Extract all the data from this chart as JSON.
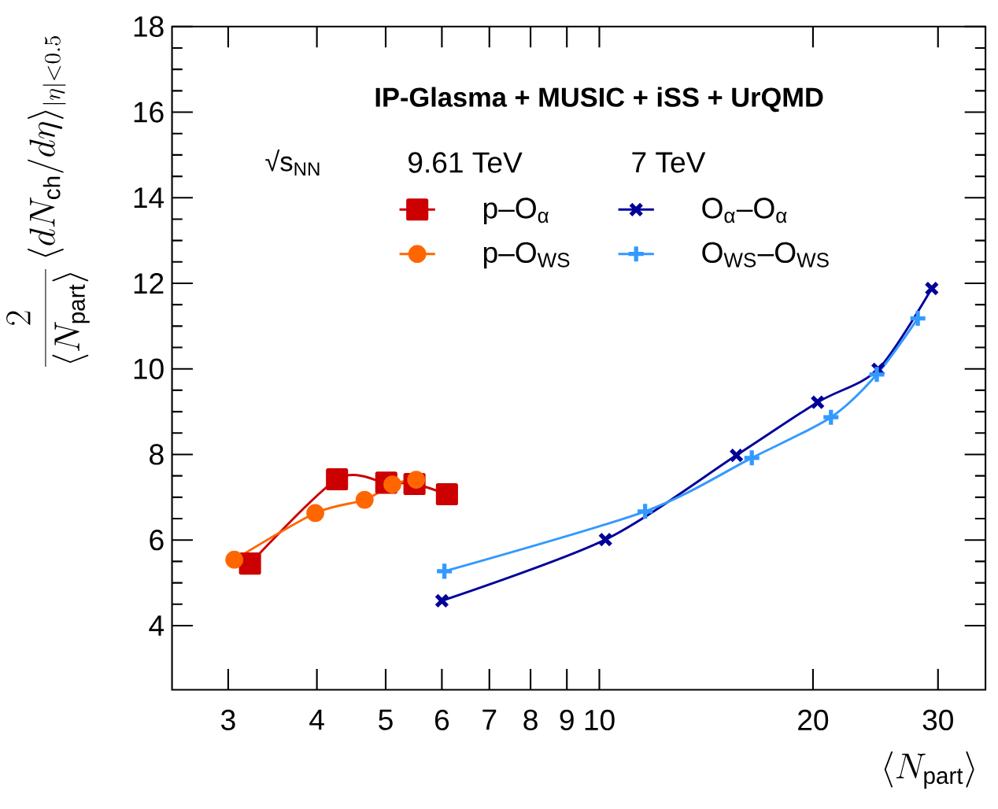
{
  "chart_data": {
    "type": "line",
    "title": "IP-Glasma + MUSIC + iSS + UrQMD",
    "xlabel": "\\langle N_{\\mathrm{part}}\\rangle",
    "ylabel": "\\frac{2}{\\langle N_{\\mathrm{part}}\\rangle}\\,\\langle dN_{\\mathrm{ch}}/d\\eta\\rangle_{|\\eta|<0.5}",
    "legend_title": "√s$_{NN}$",
    "annotations": [
      "9.61 TeV",
      "7 TeV"
    ],
    "log": "x",
    "xlim": [
      2.5,
      35
    ],
    "ylim": [
      2.5,
      18
    ],
    "xticks": [
      3,
      4,
      5,
      6,
      7,
      8,
      9,
      10,
      20,
      30
    ],
    "yticks": [
      4,
      6,
      8,
      10,
      12,
      14,
      16,
      18
    ],
    "grid": false,
    "legend": "top left",
    "line_style": "solid",
    "series": [
      {
        "name": "p–O$_{α}$",
        "color": "#cc0000",
        "marker": "square",
        "x": [
          3.22,
          4.27,
          5.01,
          5.49,
          6.1
        ],
        "values": [
          5.45,
          7.42,
          7.34,
          7.31,
          7.07
        ]
      },
      {
        "name": "p–O$_{WS}$",
        "color": "#ff6600",
        "marker": "circle",
        "x": [
          3.06,
          3.98,
          4.67,
          5.11,
          5.52
        ],
        "values": [
          5.54,
          6.63,
          6.94,
          7.3,
          7.41
        ]
      },
      {
        "name": "O$_{α}$–O$_{α}$",
        "color": "#000099",
        "marker": "cross",
        "x": [
          6.0,
          10.2,
          15.6,
          20.3,
          24.7,
          29.4
        ],
        "values": [
          4.58,
          6.01,
          7.98,
          9.22,
          9.99,
          11.88
        ]
      },
      {
        "name": "O$_{WS}$–O$_{WS}$",
        "color": "#3399ff",
        "marker": "plus",
        "x": [
          6.05,
          11.6,
          16.4,
          21.2,
          24.6,
          28.1
        ],
        "values": [
          5.27,
          6.67,
          7.92,
          8.87,
          9.87,
          11.18
        ]
      }
    ]
  }
}
